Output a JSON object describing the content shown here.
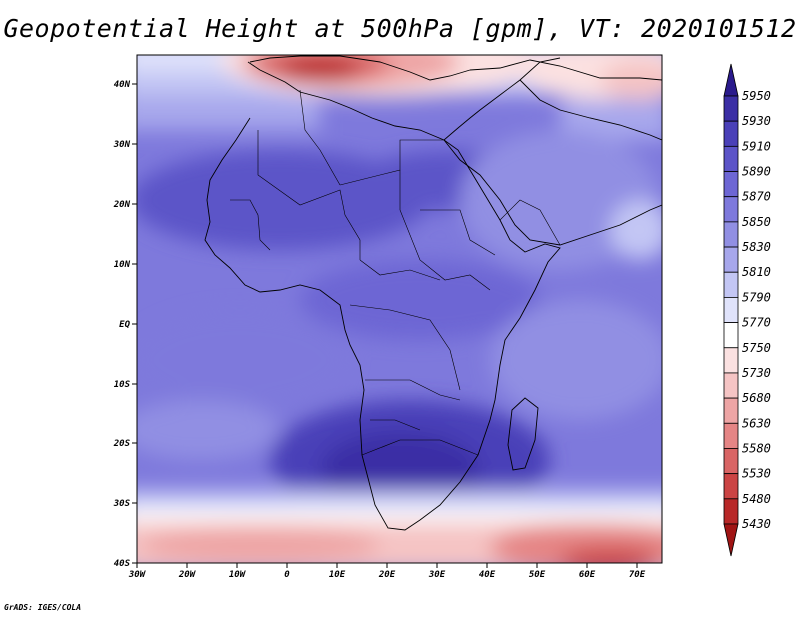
{
  "title": "Geopotential Height at 500hPa [gpm], VT: 2020101512",
  "footer": "GrADS: IGES/COLA",
  "map": {
    "region": "Africa",
    "lon_range": [
      -30,
      75
    ],
    "lat_range": [
      -40,
      45
    ],
    "x_ticks": [
      "30W",
      "20W",
      "10W",
      "0",
      "10E",
      "20E",
      "30E",
      "40E",
      "50E",
      "60E",
      "70E"
    ],
    "y_ticks": [
      "40N",
      "30N",
      "20N",
      "10N",
      "EQ",
      "10S",
      "20S",
      "30S",
      "40S"
    ]
  },
  "colorbar": {
    "levels": [
      "5950",
      "5930",
      "5910",
      "5890",
      "5870",
      "5850",
      "5830",
      "5810",
      "5790",
      "5770",
      "5750",
      "5730",
      "5680",
      "5630",
      "5580",
      "5530",
      "5480",
      "5430"
    ],
    "colors": [
      "#2a1a8c",
      "#3b2ea5",
      "#4a40b8",
      "#5c54c8",
      "#6d66d4",
      "#7e79dc",
      "#918fe3",
      "#a7a7ec",
      "#c3c6f4",
      "#e0e3fb",
      "#ffffff",
      "#fbe1e1",
      "#f5c4c4",
      "#eea5a5",
      "#e58585",
      "#d96565",
      "#cb4444",
      "#b82828",
      "#a01414"
    ]
  }
}
